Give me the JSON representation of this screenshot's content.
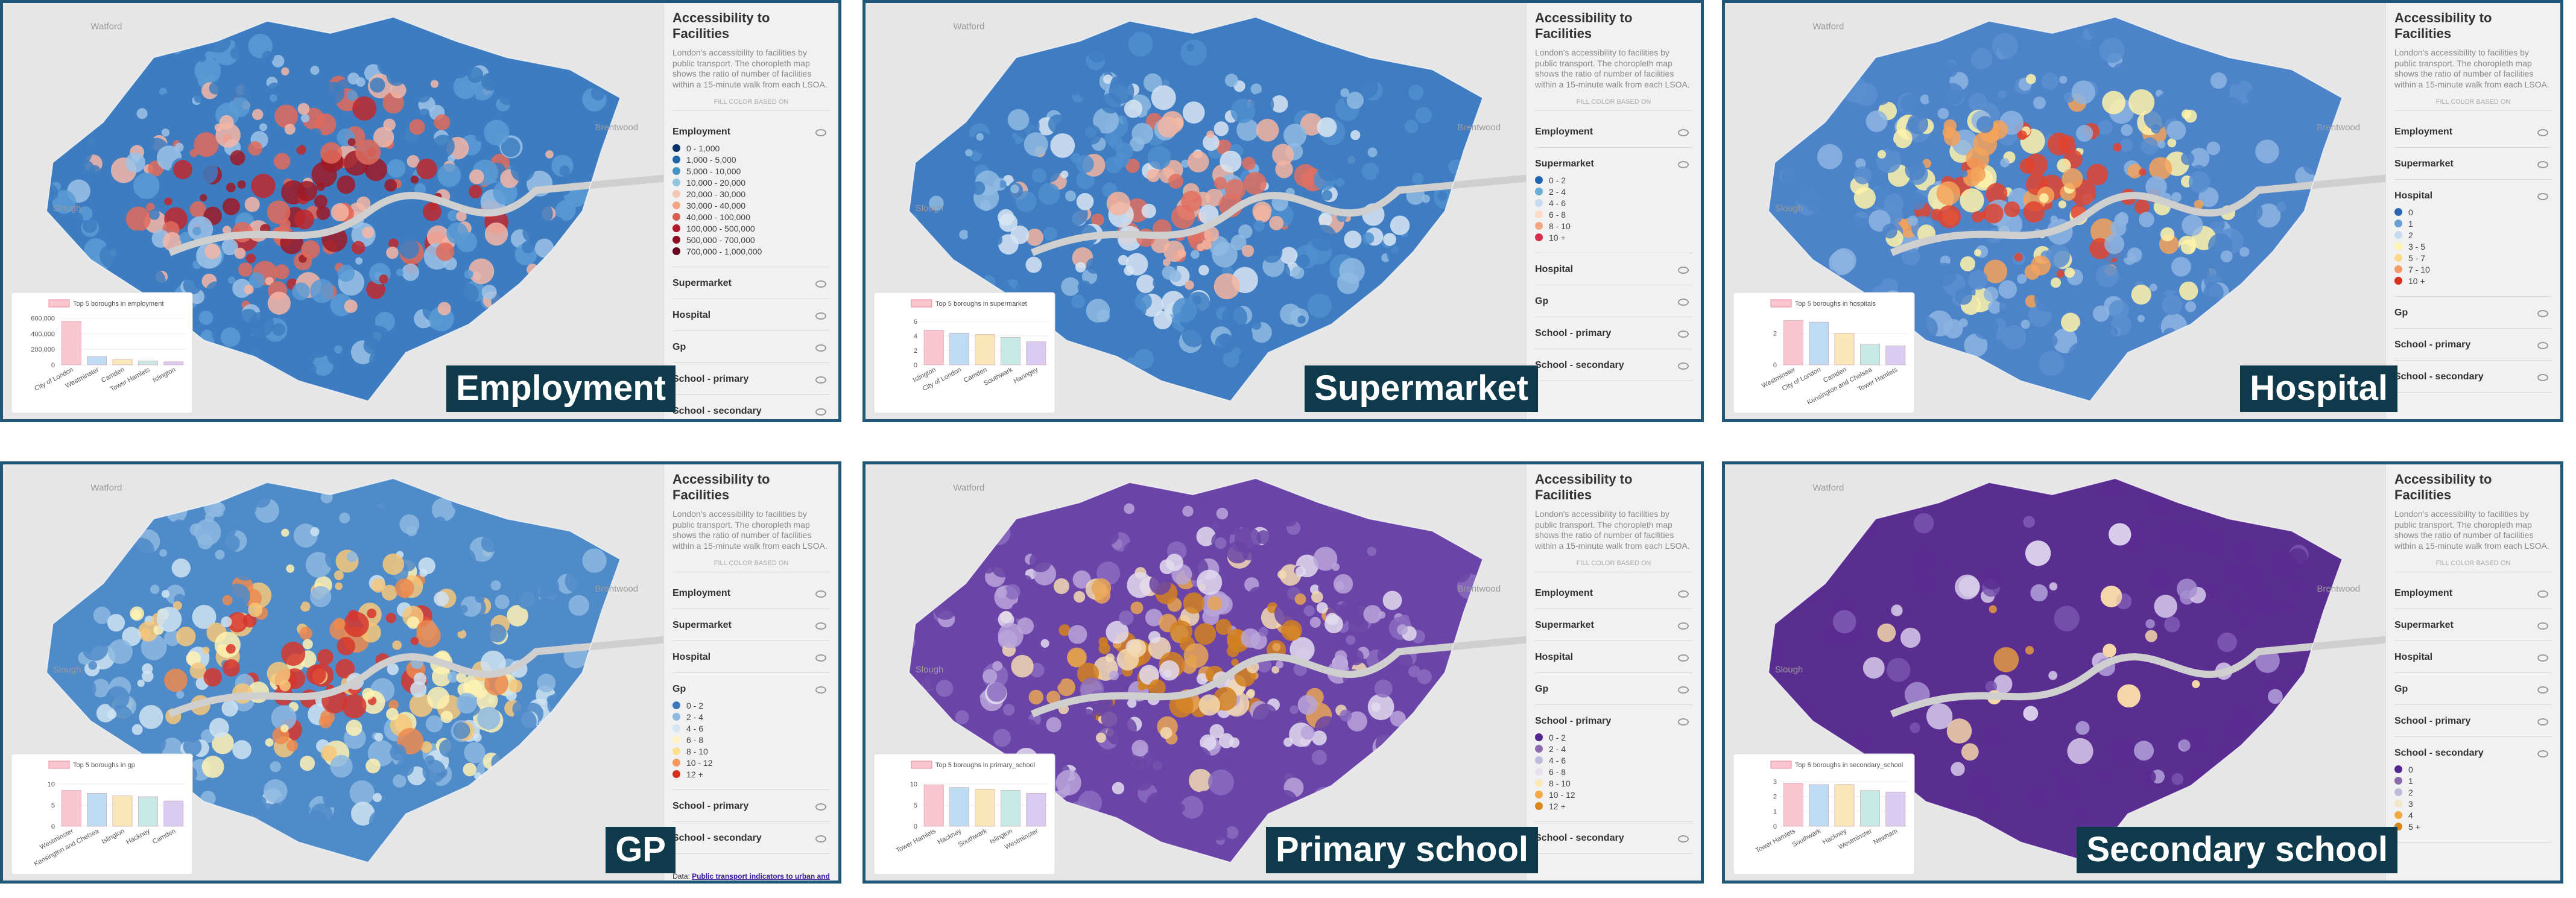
{
  "map_labels": [
    "Watford",
    "Slough",
    "Brentwood"
  ],
  "panels": [
    {
      "label": "Employment",
      "title": "Accessibility to Facilities",
      "description": "London's accessibility to facilities by public transport. The choropleth map shows the ratio of number of facilities within a 15-minute walk from each LSOA.",
      "fill_label": "FILL COLOR BASED ON",
      "map_colors": [
        "#3d7cc0",
        "#5b9bd5",
        "#9cc3e6",
        "#f4b6a6",
        "#e06b5a",
        "#c0282d",
        "#9e1a25"
      ],
      "layers": [
        {
          "name": "Employment",
          "legend": [
            {
              "label": "0 - 1,000",
              "color": "#08306b"
            },
            {
              "label": "1,000 - 5,000",
              "color": "#2166ac"
            },
            {
              "label": "5,000 - 10,000",
              "color": "#4393c3"
            },
            {
              "label": "10,000 - 20,000",
              "color": "#92c5de"
            },
            {
              "label": "20,000 - 30,000",
              "color": "#f4c7b5"
            },
            {
              "label": "30,000 - 40,000",
              "color": "#f4a582"
            },
            {
              "label": "40,000 - 100,000",
              "color": "#d6604d"
            },
            {
              "label": "100,000 - 500,000",
              "color": "#b2182b"
            },
            {
              "label": "500,000 - 700,000",
              "color": "#8b0d1f"
            },
            {
              "label": "700,000 - 1,000,000",
              "color": "#67001f"
            }
          ]
        },
        {
          "name": "Supermarket"
        },
        {
          "name": "Hospital"
        },
        {
          "name": "Gp"
        },
        {
          "name": "School - primary"
        },
        {
          "name": "School - secondary"
        }
      ],
      "chart": {
        "type": "bar",
        "title": "Top 5 boroughs in employment",
        "categories": [
          "City of London",
          "Westminster",
          "Camden",
          "Tower Hamlets",
          "Islington"
        ],
        "values": [
          560000,
          110000,
          70000,
          50000,
          40000
        ],
        "ylim": [
          0,
          650000
        ],
        "yticks": [
          0,
          {
            "value": 200000,
            "label": "200,000"
          },
          {
            "value": 400000,
            "label": "400,000"
          },
          {
            "value": 600000,
            "label": "600,000"
          }
        ],
        "colors": [
          "#f9c6cf",
          "#bfdcf3",
          "#fbe6b8",
          "#c7e8e4",
          "#d9ccf0"
        ]
      }
    },
    {
      "label": "Supermarket",
      "title": "Accessibility to Facilities",
      "description": "London's accessibility to facilities by public transport. The choropleth map shows the ratio of number of facilities within a 15-minute walk from each LSOA.",
      "fill_label": "FILL COLOR BASED ON",
      "map_colors": [
        "#3f7cc2",
        "#4f8fcf",
        "#8fbbe3",
        "#d8e6f3",
        "#f3b4a0",
        "#e07060"
      ],
      "layers": [
        {
          "name": "Employment"
        },
        {
          "name": "Supermarket",
          "legend": [
            {
              "label": "0 - 2",
              "color": "#2166ac"
            },
            {
              "label": "2 - 4",
              "color": "#6baed6"
            },
            {
              "label": "4 - 6",
              "color": "#c6dbef"
            },
            {
              "label": "6 - 8",
              "color": "#fddbc7"
            },
            {
              "label": "8 - 10",
              "color": "#f4a582"
            },
            {
              "label": "10 +",
              "color": "#d6304d"
            }
          ]
        },
        {
          "name": "Hospital"
        },
        {
          "name": "Gp"
        },
        {
          "name": "School - primary"
        },
        {
          "name": "School - secondary"
        }
      ],
      "chart": {
        "type": "bar",
        "title": "Top 5 boroughs in supermarket",
        "categories": [
          "Islington",
          "City of London",
          "Camden",
          "Southwark",
          "Haringey"
        ],
        "values": [
          4.8,
          4.4,
          4.2,
          3.8,
          3.2
        ],
        "ylim": [
          0,
          7
        ],
        "yticks": [
          0,
          2,
          4,
          6
        ],
        "colors": [
          "#f9c6cf",
          "#bfdcf3",
          "#fbe6b8",
          "#c7e8e4",
          "#d9ccf0"
        ]
      }
    },
    {
      "label": "Hospital",
      "title": "Accessibility to Facilities",
      "description": "London's accessibility to facilities by public transport. The choropleth map shows the ratio of number of facilities within a 15-minute walk from each LSOA.",
      "fill_label": "FILL COLOR BASED ON",
      "map_colors": [
        "#4d84c9",
        "#5b8fd1",
        "#8db4e2",
        "#fff2a8",
        "#f5a25b",
        "#e0442f"
      ],
      "layers": [
        {
          "name": "Employment"
        },
        {
          "name": "Supermarket"
        },
        {
          "name": "Hospital",
          "legend": [
            {
              "label": "0",
              "color": "#2c65b0"
            },
            {
              "label": "1",
              "color": "#6b9fd4"
            },
            {
              "label": "2",
              "color": "#c6dbef"
            },
            {
              "label": "3 - 5",
              "color": "#fff5b0"
            },
            {
              "label": "5 - 7",
              "color": "#fdd78a"
            },
            {
              "label": "7 - 10",
              "color": "#f59a6b"
            },
            {
              "label": "10 +",
              "color": "#d7301f"
            }
          ]
        },
        {
          "name": "Gp"
        },
        {
          "name": "School - primary"
        },
        {
          "name": "School - secondary"
        }
      ],
      "chart": {
        "type": "bar",
        "title": "Top 5 boroughs in hospitals",
        "categories": [
          "Westminster",
          "City of London",
          "Camden",
          "Kensington and Chelsea",
          "Tower Hamlets"
        ],
        "values": [
          2.8,
          2.7,
          2.0,
          1.3,
          1.2
        ],
        "ylim": [
          0,
          3.2
        ],
        "yticks": [
          0,
          2
        ],
        "colors": [
          "#f9c6cf",
          "#bfdcf3",
          "#fbe6b8",
          "#c7e8e4",
          "#d9ccf0"
        ]
      }
    },
    {
      "label": "GP",
      "title": "Accessibility to Facilities",
      "description": "London's accessibility to facilities by public transport. The choropleth map shows the ratio of number of facilities within a 15-minute walk from each LSOA.",
      "fill_label": "FILL COLOR BASED ON",
      "map_colors": [
        "#4f8ac9",
        "#8db9e2",
        "#cfe3f2",
        "#fff2b3",
        "#f6c77a",
        "#ec8a4f",
        "#d7352b"
      ],
      "layers": [
        {
          "name": "Employment"
        },
        {
          "name": "Supermarket"
        },
        {
          "name": "Hospital"
        },
        {
          "name": "Gp",
          "legend": [
            {
              "label": "0 - 2",
              "color": "#3b78bd"
            },
            {
              "label": "2 - 4",
              "color": "#8db9e2"
            },
            {
              "label": "4 - 6",
              "color": "#d4e6f4"
            },
            {
              "label": "6 - 8",
              "color": "#fff3c4"
            },
            {
              "label": "8 - 10",
              "color": "#fde08a"
            },
            {
              "label": "10 - 12",
              "color": "#f59a5b"
            },
            {
              "label": "12 +",
              "color": "#d7301f"
            }
          ]
        },
        {
          "name": "School - primary"
        },
        {
          "name": "School - secondary"
        }
      ],
      "source_label": "Data:",
      "source_link": "Public transport indicators to urban and regional services in Great Britain",
      "chart": {
        "type": "bar",
        "title": "Top 5 boroughs in gp",
        "categories": [
          "Westminster",
          "Kensington and Chelsea",
          "Islington",
          "Hackney",
          "Camden"
        ],
        "values": [
          8.5,
          7.8,
          7.2,
          7.0,
          6.0
        ],
        "ylim": [
          0,
          12
        ],
        "yticks": [
          0,
          5,
          10
        ],
        "colors": [
          "#f9c6cf",
          "#bfdcf3",
          "#fbe6b8",
          "#c7e8e4",
          "#d9ccf0"
        ]
      }
    },
    {
      "label": "Primary school",
      "title": "Accessibility to Facilities",
      "description": "London's accessibility to facilities by public transport. The choropleth map shows the ratio of number of facilities within a 15-minute walk from each LSOA.",
      "fill_label": "FILL COLOR BASED ON",
      "map_colors": [
        "#6a44a6",
        "#8b6cc0",
        "#b9a5da",
        "#e3dcf0",
        "#f3d9b3",
        "#e8a455",
        "#d4811f"
      ],
      "layers": [
        {
          "name": "Employment"
        },
        {
          "name": "Supermarket"
        },
        {
          "name": "Hospital"
        },
        {
          "name": "Gp"
        },
        {
          "name": "School - primary",
          "legend": [
            {
              "label": "0 - 2",
              "color": "#54278f"
            },
            {
              "label": "2 - 4",
              "color": "#8c6bb1"
            },
            {
              "label": "4 - 6",
              "color": "#bcbddc"
            },
            {
              "label": "6 - 8",
              "color": "#e7e1ef"
            },
            {
              "label": "8 - 10",
              "color": "#fde6b8"
            },
            {
              "label": "10 - 12",
              "color": "#f0a945"
            },
            {
              "label": "12 +",
              "color": "#d8861c"
            }
          ]
        },
        {
          "name": "School - secondary"
        }
      ],
      "chart": {
        "type": "bar",
        "title": "Top 5 boroughs in primary_school",
        "categories": [
          "Tower Hamlets",
          "Hackney",
          "Southwark",
          "Islington",
          "Westminster"
        ],
        "values": [
          9.8,
          9.2,
          8.8,
          8.5,
          7.8
        ],
        "ylim": [
          0,
          12
        ],
        "yticks": [
          0,
          5,
          10
        ],
        "colors": [
          "#f9c6cf",
          "#bfdcf3",
          "#fbe6b8",
          "#c7e8e4",
          "#d9ccf0"
        ]
      }
    },
    {
      "label": "Secondary school",
      "title": "Accessibility to Facilities",
      "description": "London's accessibility to facilities by public transport. The choropleth map shows the ratio of number of facilities within a 15-minute walk from each LSOA.",
      "fill_label": "FILL COLOR BASED ON",
      "map_colors": [
        "#5a2d91",
        "#7a55b0",
        "#a58fd0",
        "#d7cdea",
        "#f3d6a8",
        "#e49a3f"
      ],
      "layers": [
        {
          "name": "Employment"
        },
        {
          "name": "Supermarket"
        },
        {
          "name": "Hospital"
        },
        {
          "name": "Gp"
        },
        {
          "name": "School - primary"
        },
        {
          "name": "School - secondary",
          "legend": [
            {
              "label": "0",
              "color": "#54278f"
            },
            {
              "label": "1",
              "color": "#8c6bb1"
            },
            {
              "label": "2",
              "color": "#bcbddc"
            },
            {
              "label": "3",
              "color": "#f2e6c9"
            },
            {
              "label": "4",
              "color": "#f0a945"
            },
            {
              "label": "5 +",
              "color": "#d8861c"
            }
          ]
        }
      ],
      "chart": {
        "type": "bar",
        "title": "Top 5 boroughs in secondary_school",
        "categories": [
          "Tower Hamlets",
          "Southwark",
          "Hackney",
          "Westminster",
          "Newham"
        ],
        "values": [
          2.9,
          2.8,
          2.8,
          2.4,
          2.3
        ],
        "ylim": [
          0,
          3.4
        ],
        "yticks": [
          0,
          1,
          2,
          3
        ],
        "colors": [
          "#f9c6cf",
          "#bfdcf3",
          "#fbe6b8",
          "#c7e8e4",
          "#d9ccf0"
        ]
      }
    }
  ]
}
